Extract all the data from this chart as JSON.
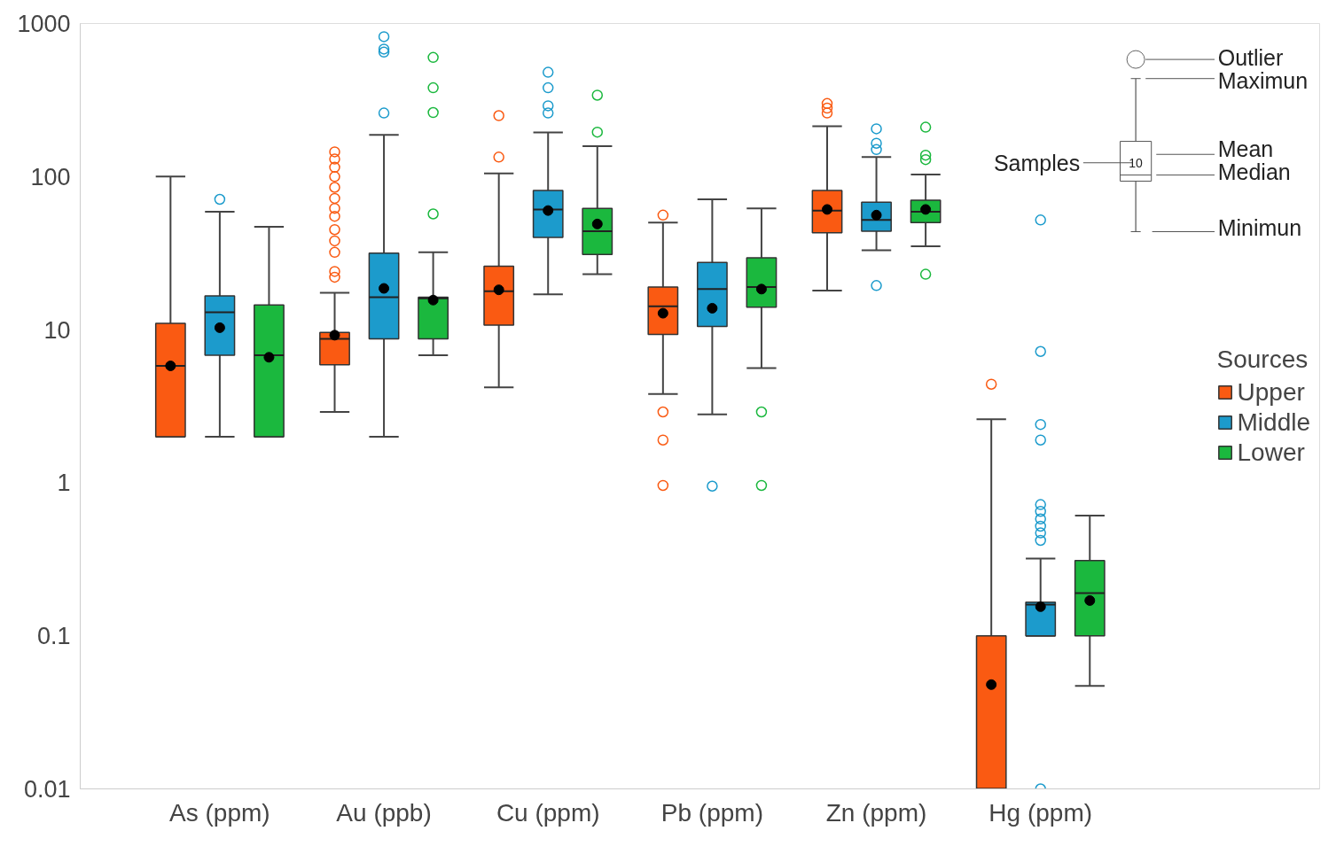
{
  "chart_data": {
    "type": "box",
    "categories": [
      "As (ppm)",
      "Au (ppb)",
      "Cu (ppm)",
      "Pb (ppm)",
      "Zn (ppm)",
      "Hg (ppm)"
    ],
    "series": [
      {
        "name": "Upper",
        "color": "#fa5a12",
        "boxes": [
          {
            "low": 2,
            "q1": 2,
            "median": 5.8,
            "q3": 11,
            "high": 100,
            "mean": 5.8
          },
          {
            "low": 2.9,
            "q1": 5.9,
            "median": 8.7,
            "q3": 9.6,
            "high": 17.4,
            "mean": 9.2,
            "outliers": [
              22,
              24,
              32,
              38,
              45,
              55,
              62,
              72,
              85,
              100,
              115,
              130,
              145
            ]
          },
          {
            "low": 4.2,
            "q1": 10.7,
            "median": 17.8,
            "q3": 26,
            "high": 105,
            "mean": 18.2,
            "outliers": [
              134,
              250
            ]
          },
          {
            "low": 3.8,
            "q1": 9.3,
            "median": 14.2,
            "q3": 19,
            "high": 50,
            "mean": 12.8,
            "outliers": [
              0.96,
              1.9,
              2.9,
              56
            ]
          },
          {
            "low": 18,
            "q1": 43,
            "median": 60,
            "q3": 81,
            "high": 213,
            "mean": 61,
            "outliers": [
              260,
              280,
              300
            ]
          },
          {
            "low": 0.01,
            "q1": 0.01,
            "median": 0.01,
            "q3": 0.1,
            "high": 2.6,
            "mean": 0.048,
            "outliers": [
              4.4
            ]
          }
        ]
      },
      {
        "name": "Middle",
        "color": "#1c9bcc",
        "boxes": [
          {
            "low": 2,
            "q1": 6.8,
            "median": 13,
            "q3": 16.6,
            "high": 59,
            "mean": 10.3,
            "outliers": [
              71
            ]
          },
          {
            "low": 2,
            "q1": 8.7,
            "median": 16.3,
            "q3": 31.6,
            "high": 187,
            "mean": 18.6,
            "outliers": [
              260,
              650,
              680,
              820
            ]
          },
          {
            "low": 17,
            "q1": 40,
            "median": 61,
            "q3": 81,
            "high": 194,
            "mean": 60,
            "outliers": [
              260,
              290,
              380,
              480
            ]
          },
          {
            "low": 2.8,
            "q1": 10.5,
            "median": 18.4,
            "q3": 27.5,
            "high": 71,
            "mean": 13.8,
            "outliers": [
              0.95
            ]
          },
          {
            "low": 33,
            "q1": 44,
            "median": 52,
            "q3": 68,
            "high": 134,
            "mean": 56,
            "outliers": [
              19.4,
              150,
              165,
              205
            ]
          },
          {
            "low": 0.1,
            "q1": 0.1,
            "median": 0.16,
            "q3": 0.166,
            "high": 0.32,
            "mean": 0.155,
            "outliers": [
              0.01,
              0.42,
              0.47,
              0.52,
              0.58,
              0.65,
              0.72,
              1.9,
              2.4,
              7.2,
              52
            ]
          }
        ]
      },
      {
        "name": "Lower",
        "color": "#1bb83e",
        "boxes": [
          {
            "low": 2,
            "q1": 2,
            "median": 6.8,
            "q3": 14.5,
            "high": 47,
            "mean": 6.6
          },
          {
            "low": 6.8,
            "q1": 8.7,
            "median": 16,
            "q3": 16.3,
            "high": 32,
            "mean": 15.6,
            "outliers": [
              57,
              262,
              380,
              600
            ]
          },
          {
            "low": 23,
            "q1": 31,
            "median": 44,
            "q3": 62,
            "high": 158,
            "mean": 49,
            "outliers": [
              195,
              340
            ]
          },
          {
            "low": 5.6,
            "q1": 14,
            "median": 19,
            "q3": 29.5,
            "high": 62,
            "mean": 18.4,
            "outliers": [
              0.96,
              2.9
            ]
          },
          {
            "low": 35,
            "q1": 50,
            "median": 59,
            "q3": 70,
            "high": 103,
            "mean": 61,
            "outliers": [
              23,
              129,
              138,
              210
            ]
          },
          {
            "low": 0.047,
            "q1": 0.1,
            "median": 0.19,
            "q3": 0.31,
            "high": 0.61,
            "mean": 0.17
          }
        ]
      }
    ],
    "log": true,
    "ylim": [
      0.01,
      1000
    ],
    "yticks": [
      0.01,
      0.1,
      1,
      10,
      100,
      1000
    ],
    "grid": false,
    "legend": "right",
    "legend_title": "Sources",
    "annotations": [
      "Outlier",
      "Maximun",
      "Mean",
      "Median",
      "Minimun",
      "Samples",
      "10"
    ]
  }
}
